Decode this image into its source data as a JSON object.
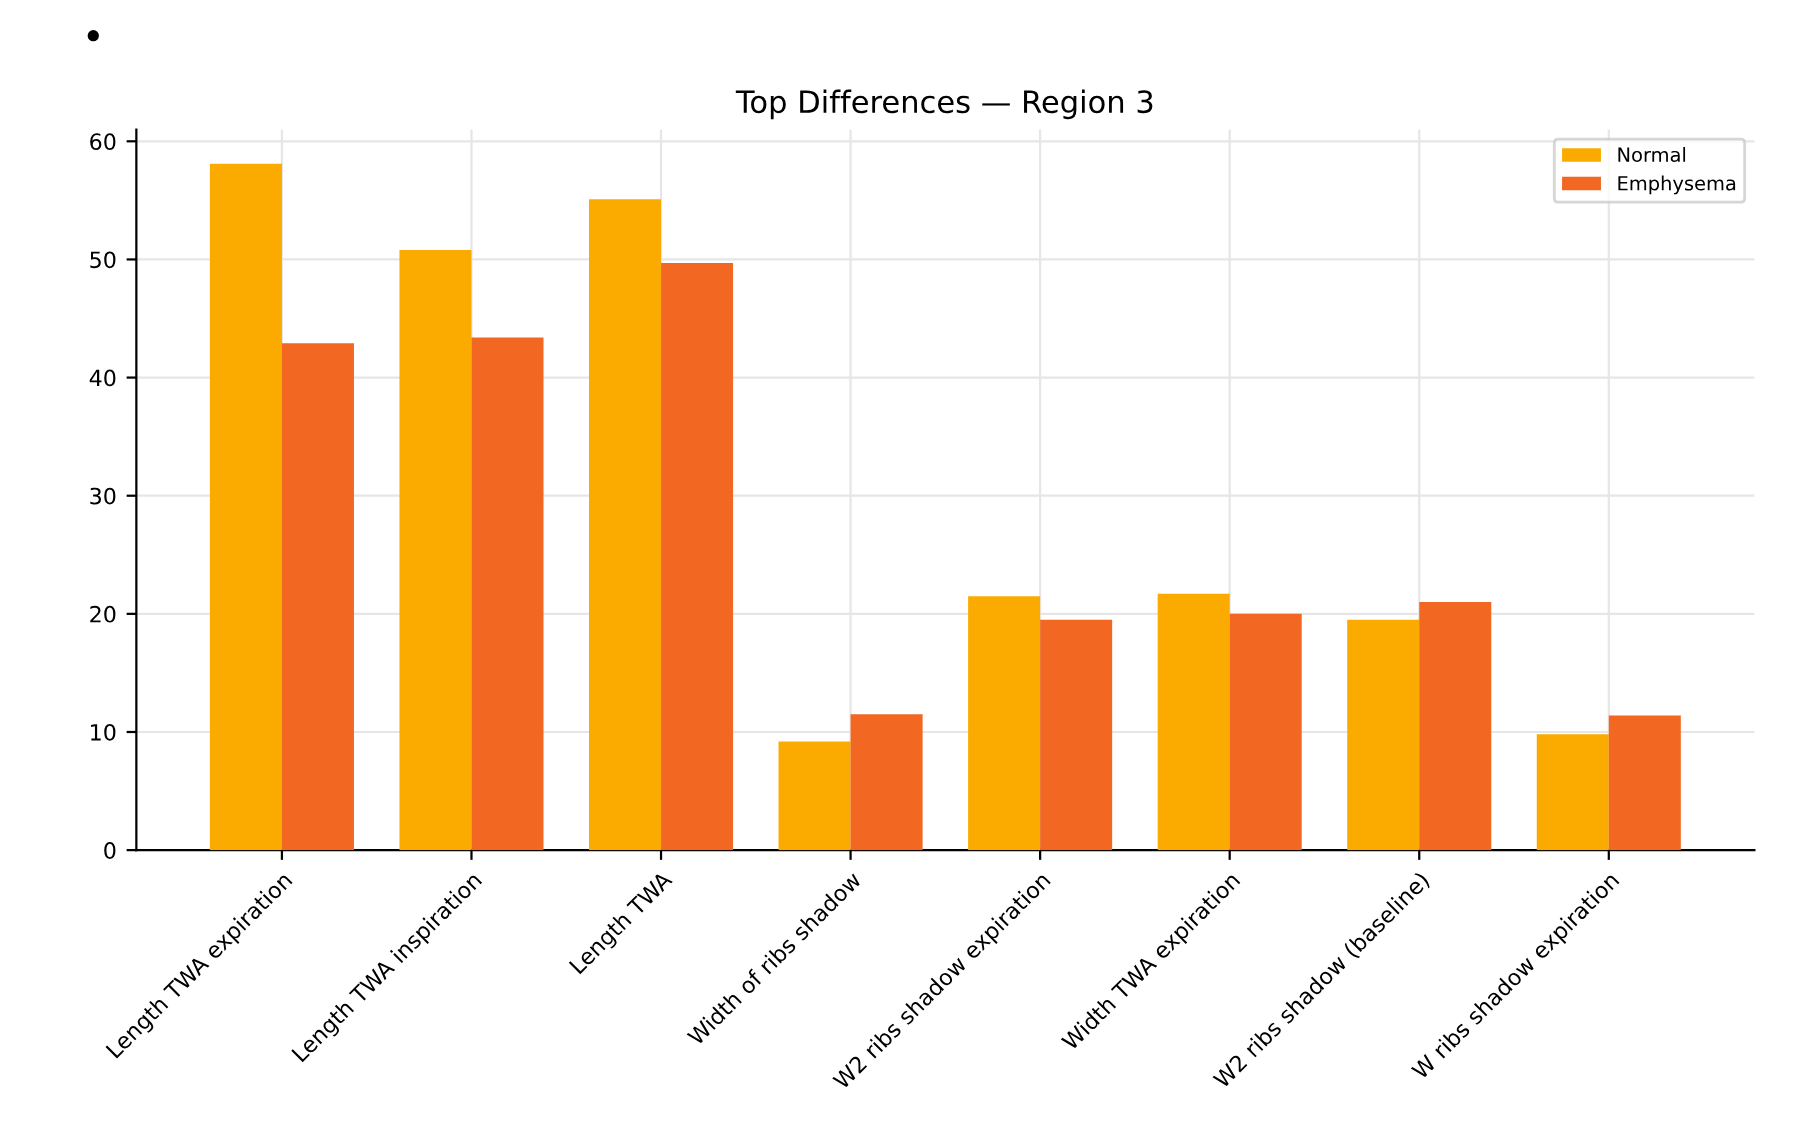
{
  "chart_data": {
    "type": "bar",
    "title": "Top Differences — Region 3",
    "categories": [
      "Length TWA expiration",
      "Length TWA inspiration",
      "Length TWA",
      "Width of ribs shadow",
      "W2 ribs shadow expiration",
      "Width TWA expiration",
      "W2 ribs shadow (baseline)",
      "W ribs shadow expiration"
    ],
    "series": [
      {
        "name": "Normal",
        "color": "#fbab00",
        "values": [
          58.1,
          50.8,
          55.1,
          9.2,
          21.5,
          21.7,
          19.5,
          9.8
        ]
      },
      {
        "name": "Emphysema",
        "color": "#f26722",
        "values": [
          42.9,
          43.4,
          49.7,
          11.5,
          19.5,
          20.0,
          21.0,
          11.4
        ]
      }
    ],
    "ylim": [
      0,
      61
    ],
    "yticks": [
      0,
      10,
      20,
      30,
      40,
      50,
      60
    ],
    "grid": true,
    "legend": "top right",
    "annotations": [
      "•"
    ]
  }
}
